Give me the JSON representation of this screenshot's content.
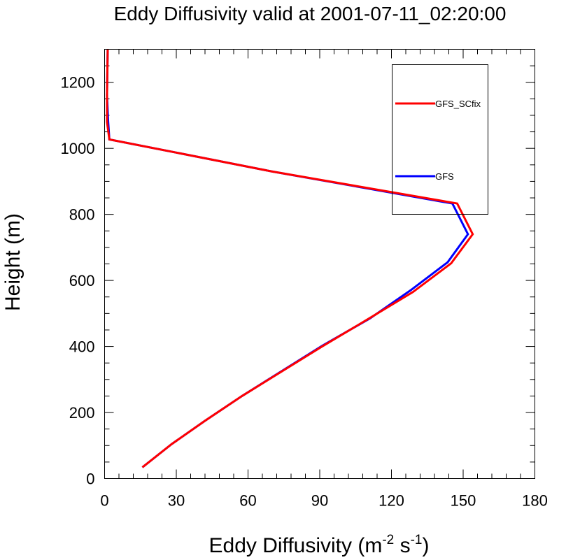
{
  "chart_data": {
    "type": "line",
    "title": "Eddy Diffusivity valid at 2001-07-11_02:20:00",
    "xlabel": {
      "main": "Eddy Diffusivity (m",
      "sup1": "-2",
      "mid": " s",
      "sup2": "-1",
      "end": ")"
    },
    "ylabel": "Height (m)",
    "xlim": [
      0,
      180
    ],
    "ylim": [
      0,
      1300
    ],
    "xticks": [
      0,
      30,
      60,
      90,
      120,
      150,
      180
    ],
    "yticks": [
      0,
      200,
      400,
      600,
      800,
      1000,
      1200
    ],
    "legend_position": "top-right",
    "series": [
      {
        "name": "GFS_SCfix",
        "color": "#ff0000",
        "points": [
          [
            15.8,
            34
          ],
          [
            28,
            104
          ],
          [
            42,
            175
          ],
          [
            57.5,
            250
          ],
          [
            91,
            400
          ],
          [
            110,
            482
          ],
          [
            129,
            565
          ],
          [
            145,
            652
          ],
          [
            154,
            740
          ],
          [
            147.5,
            833
          ],
          [
            70,
            930
          ],
          [
            2,
            1027
          ],
          [
            1,
            1080
          ],
          [
            1,
            1160
          ],
          [
            1.3,
            1300
          ]
        ]
      },
      {
        "name": "GFS",
        "color": "#0000ff",
        "points": [
          [
            15.8,
            34
          ],
          [
            28,
            104
          ],
          [
            42,
            175
          ],
          [
            57.5,
            250
          ],
          [
            91,
            402
          ],
          [
            111,
            485
          ],
          [
            128,
            570
          ],
          [
            143.5,
            655
          ],
          [
            152,
            740
          ],
          [
            145.5,
            833
          ],
          [
            70,
            930
          ],
          [
            2,
            1027
          ],
          [
            1.5,
            1080
          ],
          [
            1,
            1160
          ],
          [
            1.3,
            1300
          ]
        ]
      }
    ]
  }
}
